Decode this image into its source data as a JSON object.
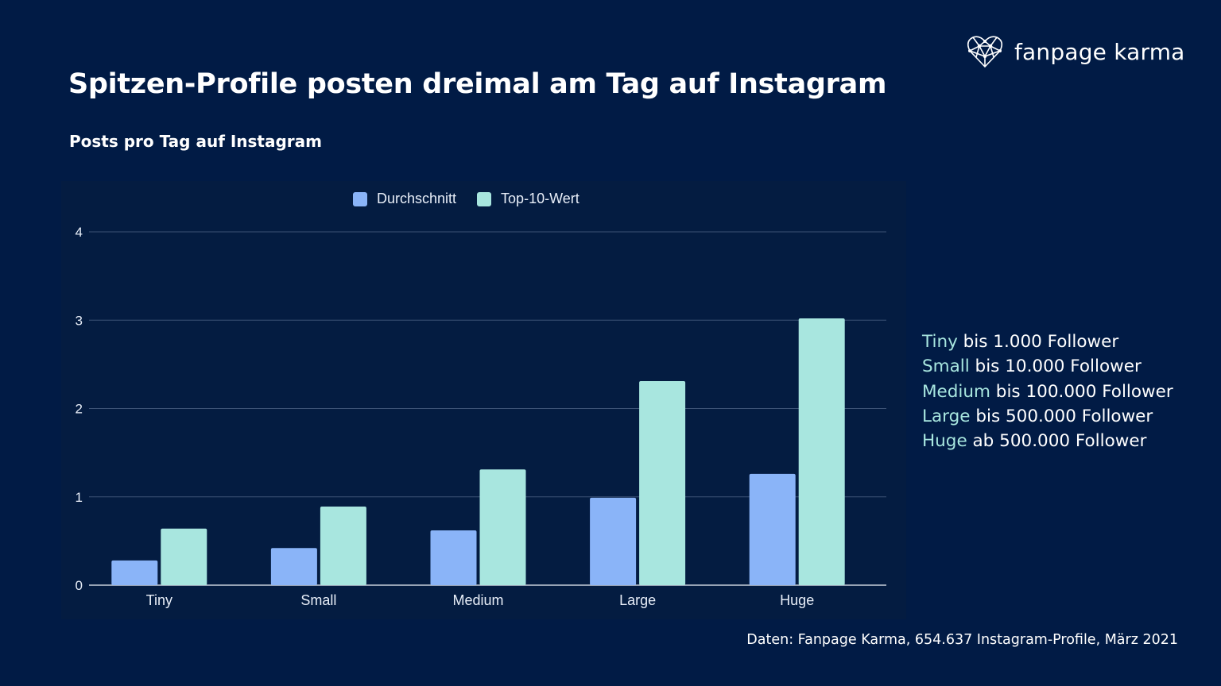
{
  "header": {
    "title": "Spitzen-Profile posten dreimal am Tag auf Instagram",
    "subtitle": "Posts pro Tag auf Instagram",
    "logo_text": "fanpage karma",
    "logo_icon": "heart-network-icon"
  },
  "size_legend": [
    {
      "category": "Tiny",
      "text": " bis 1.000 Follower"
    },
    {
      "category": "Small",
      "text": " bis 10.000 Follower"
    },
    {
      "category": "Medium",
      "text": " bis 100.000 Follower"
    },
    {
      "category": "Large",
      "text": " bis 500.000 Follower"
    },
    {
      "category": "Huge",
      "text": " ab 500.000 Follower"
    }
  ],
  "source": "Daten: Fanpage Karma, 654.637 Instagram-Profile, März 2021",
  "colors": {
    "background": "#011b45",
    "durchschnitt": "#8ab4f8",
    "top10": "#a8e6df",
    "category_text": "#a8e6df"
  },
  "chart_data": {
    "type": "bar",
    "title": "Posts pro Tag auf Instagram",
    "categories": [
      "Tiny",
      "Small",
      "Medium",
      "Large",
      "Huge"
    ],
    "series": [
      {
        "name": "Durchschnitt",
        "color": "#8ab4f8",
        "values": [
          0.28,
          0.42,
          0.62,
          0.99,
          1.26
        ]
      },
      {
        "name": "Top-10-Wert",
        "color": "#a8e6df",
        "values": [
          0.64,
          0.89,
          1.31,
          2.31,
          3.02
        ]
      }
    ],
    "yticks": [
      "0",
      "1",
      "2",
      "3",
      "4"
    ],
    "ylim": [
      0,
      4
    ],
    "grid": true,
    "legend": "top-center",
    "xlabel": "",
    "ylabel": ""
  }
}
